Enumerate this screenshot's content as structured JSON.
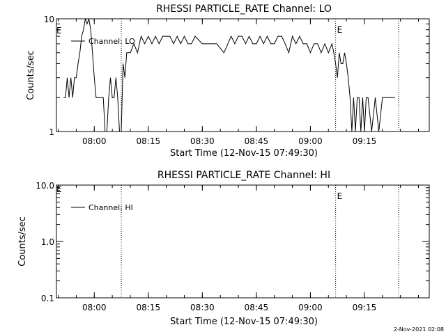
{
  "chart_data": [
    {
      "type": "line",
      "title": "RHESSI PARTICLE_RATE Channel: LO",
      "xlabel": "Start Time (12-Nov-15 07:49:30)",
      "ylabel": "Counts/sec",
      "yscale": "log",
      "ylim": [
        1,
        10
      ],
      "xlim": [
        "07:49:30",
        "09:33:00"
      ],
      "x_ticks": [
        "08:00",
        "08:15",
        "08:30",
        "08:45",
        "09:00",
        "09:15"
      ],
      "y_ticks": [
        "1",
        "10"
      ],
      "legend": "Channel: LO",
      "legend_position": "top-left",
      "markers": [
        {
          "time": "08:07:30",
          "label": ""
        },
        {
          "time": "09:07:00",
          "label": "E"
        },
        {
          "time": "09:24:30",
          "label": ""
        }
      ],
      "left_marker_label": "E",
      "series": [
        {
          "name": "Channel: LO",
          "x": [
            "07:51:30",
            "07:52:00",
            "07:52:30",
            "07:53:00",
            "07:53:30",
            "07:54:00",
            "07:54:30",
            "07:55:00",
            "07:55:30",
            "07:56:00",
            "07:56:30",
            "07:57:00",
            "07:57:30",
            "07:58:00",
            "07:58:30",
            "07:59:00",
            "07:59:30",
            "08:00:00",
            "08:00:30",
            "08:01:00",
            "08:01:30",
            "08:02:00",
            "08:02:30",
            "08:03:00",
            "08:03:30",
            "08:04:00",
            "08:04:30",
            "08:05:00",
            "08:05:30",
            "08:06:00",
            "08:06:30",
            "08:07:00",
            "08:07:30",
            "08:08:00",
            "08:08:30",
            "08:09:00",
            "08:10:00",
            "08:11:00",
            "08:12:00",
            "08:13:00",
            "08:14:00",
            "08:15:00",
            "08:16:00",
            "08:17:00",
            "08:18:00",
            "08:19:00",
            "08:20:00",
            "08:21:00",
            "08:22:00",
            "08:23:00",
            "08:24:00",
            "08:25:00",
            "08:26:00",
            "08:27:00",
            "08:28:00",
            "08:30:00",
            "08:32:00",
            "08:34:00",
            "08:36:00",
            "08:38:00",
            "08:39:00",
            "08:40:00",
            "08:41:00",
            "08:42:00",
            "08:43:00",
            "08:44:00",
            "08:45:00",
            "08:46:00",
            "08:47:00",
            "08:48:00",
            "08:49:00",
            "08:50:00",
            "08:51:00",
            "08:52:00",
            "08:53:00",
            "08:54:00",
            "08:55:00",
            "08:56:00",
            "08:57:00",
            "08:58:00",
            "08:59:00",
            "09:00:00",
            "09:01:00",
            "09:02:00",
            "09:03:00",
            "09:04:00",
            "09:05:00",
            "09:06:00",
            "09:06:30",
            "09:07:00",
            "09:07:30",
            "09:08:00",
            "09:08:30",
            "09:09:00",
            "09:09:30",
            "09:10:00",
            "09:10:30",
            "09:11:00",
            "09:11:30",
            "09:12:00",
            "09:12:30",
            "09:13:00",
            "09:13:30",
            "09:14:00",
            "09:14:30",
            "09:15:00",
            "09:15:30",
            "09:16:00",
            "09:17:00",
            "09:18:00",
            "09:19:00",
            "09:20:00",
            "09:20:30",
            "09:21:00",
            "09:22:00",
            "09:22:30",
            "09:23:00",
            "09:23:30"
          ],
          "values": [
            2,
            2,
            3,
            2,
            3,
            2,
            3,
            3,
            4,
            5,
            7,
            8,
            10,
            9,
            10,
            8,
            5,
            3,
            2,
            2,
            2,
            2,
            2,
            1,
            1,
            2,
            3,
            2,
            2,
            3,
            2,
            1,
            1,
            4,
            3,
            5,
            5,
            6,
            5,
            7,
            6,
            7,
            6,
            7,
            6,
            7,
            7,
            7,
            6,
            7,
            6,
            7,
            6,
            6,
            7,
            6,
            6,
            6,
            5,
            7,
            6,
            7,
            7,
            6,
            7,
            6,
            6,
            7,
            6,
            7,
            6,
            6,
            7,
            7,
            6,
            5,
            7,
            6,
            7,
            6,
            6,
            5,
            6,
            6,
            5,
            6,
            5,
            6,
            5,
            4,
            3,
            5,
            4,
            4,
            5,
            4,
            3,
            2,
            1,
            2,
            1,
            2,
            2,
            1,
            2,
            1,
            2,
            2,
            1,
            2,
            1,
            2,
            2,
            2,
            2,
            2,
            2,
            2
          ]
        }
      ]
    },
    {
      "type": "line",
      "title": "RHESSI PARTICLE_RATE Channel: HI",
      "xlabel": "Start Time (12-Nov-15 07:49:30)",
      "ylabel": "Counts/sec",
      "yscale": "log",
      "ylim": [
        0.1,
        10
      ],
      "xlim": [
        "07:49:30",
        "09:33:00"
      ],
      "x_ticks": [
        "08:00",
        "08:15",
        "08:30",
        "08:45",
        "09:00",
        "09:15"
      ],
      "y_ticks": [
        "0.1",
        "1.0",
        "10.0"
      ],
      "legend": "Channel: HI",
      "legend_position": "top-left",
      "markers": [
        {
          "time": "08:07:30",
          "label": ""
        },
        {
          "time": "09:07:00",
          "label": "E"
        },
        {
          "time": "09:24:30",
          "label": ""
        }
      ],
      "left_marker_label": "E",
      "series": [
        {
          "name": "Channel: HI",
          "x": [],
          "values": []
        }
      ]
    }
  ],
  "footer_stamp": "2-Nov-2021 02:08"
}
